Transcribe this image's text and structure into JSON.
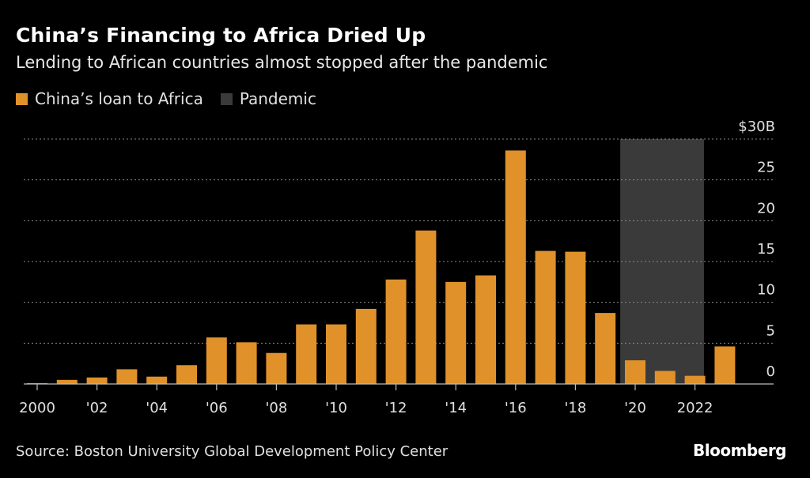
{
  "title": "China’s Financing to Africa Dried Up",
  "subtitle": "Lending to African countries almost stopped after the pandemic",
  "legend": [
    {
      "label": "China’s loan to Africa",
      "color": "#e0912a"
    },
    {
      "label": "Pandemic",
      "color": "#3a3a3a"
    }
  ],
  "source": "Source: Boston University Global Development Policy Center",
  "brand": "Bloomberg",
  "chart_data": {
    "type": "bar",
    "categories": [
      "2000",
      "2001",
      "2002",
      "2003",
      "2004",
      "2005",
      "2006",
      "2007",
      "2008",
      "2009",
      "2010",
      "2011",
      "2012",
      "2013",
      "2014",
      "2015",
      "2016",
      "2017",
      "2018",
      "2019",
      "2020",
      "2021",
      "2022",
      "2023"
    ],
    "series": [
      {
        "name": "China’s loan to Africa",
        "values": [
          0.1,
          0.5,
          0.8,
          1.8,
          0.9,
          2.3,
          5.7,
          5.1,
          3.8,
          7.3,
          7.3,
          9.2,
          12.8,
          18.8,
          12.5,
          13.3,
          28.6,
          16.3,
          16.2,
          8.7,
          2.9,
          1.6,
          1.0,
          4.6
        ]
      }
    ],
    "shaded_period": {
      "label": "Pandemic",
      "x_start": "2019",
      "x_end": "2022"
    },
    "x_tick_labels": [
      "2000",
      "'02",
      "'04",
      "'06",
      "'08",
      "'10",
      "'12",
      "'14",
      "'16",
      "'18",
      "'20",
      "2022"
    ],
    "y_tick_labels": [
      "$30B",
      "25",
      "20",
      "15",
      "10",
      "5",
      "0"
    ],
    "y_ticks": [
      30,
      25,
      20,
      15,
      10,
      5,
      0
    ],
    "ylim": [
      0,
      30
    ],
    "grid": true,
    "y_axis_side": "right",
    "colors": {
      "bar": "#e0912a",
      "pandemic": "#3a3a3a",
      "grid": "#8a8a8a",
      "axis": "#bbbbbb"
    }
  }
}
